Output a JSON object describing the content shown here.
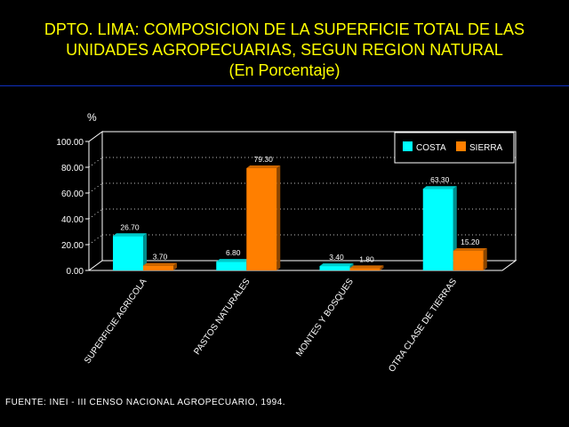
{
  "header": {
    "title_line1": "DPTO. LIMA: COMPOSICION DE LA SUPERFICIE TOTAL DE LAS",
    "title_line2": "UNIDADES AGROPECUARIAS, SEGUN REGION NATURAL",
    "title_line3": "(En Porcentaje)"
  },
  "footer": {
    "source": "FUENTE: INEI - III CENSO NACIONAL AGROPECUARIO, 1994."
  },
  "chart_data": {
    "type": "bar",
    "title": "DPTO. LIMA: COMPOSICION DE LA SUPERFICIE TOTAL DE LAS UNIDADES AGROPECUARIAS, SEGUN REGION NATURAL",
    "subtitle": "(En Porcentaje)",
    "ylabel": "%",
    "ylim": [
      0,
      100
    ],
    "yticks": [
      "100.00",
      "80.00",
      "60.00",
      "40.00",
      "20.00",
      "0.00"
    ],
    "ytick_values": [
      100,
      80,
      60,
      40,
      20,
      0
    ],
    "categories": [
      "SUPERFICIE AGRICOLA",
      "PASTOS NATURALES",
      "MONTES Y BOSQUES",
      "OTRA CLASE DE TIERRAS"
    ],
    "series": [
      {
        "name": "COSTA",
        "values": [
          26.7,
          6.8,
          3.4,
          63.3
        ],
        "labels": [
          "26.70",
          "6.80",
          "3.40",
          "63.30"
        ],
        "color": "#00ffff"
      },
      {
        "name": "SIERRA",
        "values": [
          3.7,
          79.3,
          1.8,
          15.2
        ],
        "labels": [
          "3.70",
          "79.30",
          "1.80",
          "15.20"
        ],
        "color": "#ff7f00"
      }
    ],
    "grid": true,
    "legend": "top-right",
    "style": "3d"
  }
}
